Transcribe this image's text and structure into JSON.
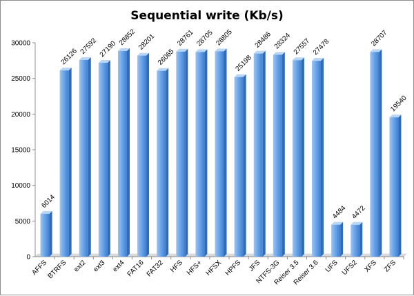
{
  "chart_data": {
    "type": "bar",
    "title": "Sequential write (Kb/s)",
    "xlabel": "",
    "ylabel": "",
    "ylim": [
      0,
      30000
    ],
    "yticks": [
      0,
      5000,
      10000,
      15000,
      20000,
      25000,
      30000
    ],
    "grid": false,
    "legend": "none",
    "categories": [
      "AFFS",
      "BTRFS",
      "ext2",
      "ext3",
      "ext4",
      "FAT16",
      "FAT32",
      "HFS",
      "HFS+",
      "HFSX",
      "HPFS",
      "JFS",
      "NTFS-3G",
      "Reiser 3.5",
      "Reiser 3.6",
      "UFS",
      "UFS2",
      "XFS",
      "ZFS"
    ],
    "values": [
      6014,
      26126,
      27592,
      27190,
      28852,
      28201,
      26065,
      28761,
      28705,
      28805,
      25198,
      28486,
      28324,
      27557,
      27478,
      4484,
      4472,
      28707,
      19540
    ],
    "bar_color": "#4a8fe0"
  }
}
